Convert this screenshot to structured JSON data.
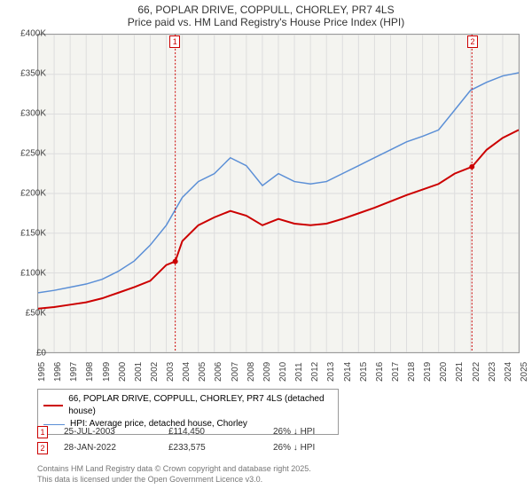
{
  "title_line1": "66, POPLAR DRIVE, COPPULL, CHORLEY, PR7 4LS",
  "title_line2": "Price paid vs. HM Land Registry's House Price Index (HPI)",
  "chart": {
    "type": "line",
    "background_color": "#f4f4f0",
    "border_color": "#999999",
    "grid_color": "#dddddd",
    "x_min": 1995,
    "x_max": 2025,
    "y_min": 0,
    "y_max": 400000,
    "y_ticks": [
      0,
      50000,
      100000,
      150000,
      200000,
      250000,
      300000,
      350000,
      400000
    ],
    "y_tick_labels": [
      "£0",
      "£50K",
      "£100K",
      "£150K",
      "£200K",
      "£250K",
      "£300K",
      "£350K",
      "£400K"
    ],
    "y_fontsize": 10,
    "x_ticks": [
      1995,
      1996,
      1997,
      1998,
      1999,
      2000,
      2001,
      2002,
      2003,
      2004,
      2005,
      2006,
      2007,
      2008,
      2009,
      2010,
      2011,
      2012,
      2013,
      2014,
      2015,
      2016,
      2017,
      2018,
      2019,
      2020,
      2021,
      2022,
      2023,
      2024,
      2025
    ],
    "x_fontsize": 10,
    "series": [
      {
        "name": "property",
        "color": "#cc0000",
        "width": 2,
        "points": [
          [
            1995,
            55000
          ],
          [
            1996,
            57000
          ],
          [
            1997,
            60000
          ],
          [
            1998,
            63000
          ],
          [
            1999,
            68000
          ],
          [
            2000,
            75000
          ],
          [
            2001,
            82000
          ],
          [
            2002,
            90000
          ],
          [
            2003,
            110000
          ],
          [
            2003.56,
            114450
          ],
          [
            2004,
            140000
          ],
          [
            2005,
            160000
          ],
          [
            2006,
            170000
          ],
          [
            2007,
            178000
          ],
          [
            2008,
            172000
          ],
          [
            2009,
            160000
          ],
          [
            2010,
            168000
          ],
          [
            2011,
            162000
          ],
          [
            2012,
            160000
          ],
          [
            2013,
            162000
          ],
          [
            2014,
            168000
          ],
          [
            2015,
            175000
          ],
          [
            2016,
            182000
          ],
          [
            2017,
            190000
          ],
          [
            2018,
            198000
          ],
          [
            2019,
            205000
          ],
          [
            2020,
            212000
          ],
          [
            2021,
            225000
          ],
          [
            2022.08,
            233575
          ],
          [
            2023,
            255000
          ],
          [
            2024,
            270000
          ],
          [
            2025,
            280000
          ]
        ]
      },
      {
        "name": "hpi",
        "color": "#5b8fd6",
        "width": 1.5,
        "points": [
          [
            1995,
            75000
          ],
          [
            1996,
            78000
          ],
          [
            1997,
            82000
          ],
          [
            1998,
            86000
          ],
          [
            1999,
            92000
          ],
          [
            2000,
            102000
          ],
          [
            2001,
            115000
          ],
          [
            2002,
            135000
          ],
          [
            2003,
            160000
          ],
          [
            2004,
            195000
          ],
          [
            2005,
            215000
          ],
          [
            2006,
            225000
          ],
          [
            2007,
            245000
          ],
          [
            2008,
            235000
          ],
          [
            2009,
            210000
          ],
          [
            2010,
            225000
          ],
          [
            2011,
            215000
          ],
          [
            2012,
            212000
          ],
          [
            2013,
            215000
          ],
          [
            2014,
            225000
          ],
          [
            2015,
            235000
          ],
          [
            2016,
            245000
          ],
          [
            2017,
            255000
          ],
          [
            2018,
            265000
          ],
          [
            2019,
            272000
          ],
          [
            2020,
            280000
          ],
          [
            2021,
            305000
          ],
          [
            2022,
            330000
          ],
          [
            2023,
            340000
          ],
          [
            2024,
            348000
          ],
          [
            2025,
            352000
          ]
        ]
      }
    ],
    "markers": [
      {
        "id": "1",
        "x": 2003.56,
        "y": 114450
      },
      {
        "id": "2",
        "x": 2022.08,
        "y": 233575
      }
    ]
  },
  "legend": {
    "items": [
      {
        "color": "#cc0000",
        "width": 2,
        "label": "66, POPLAR DRIVE, COPPULL, CHORLEY, PR7 4LS (detached house)"
      },
      {
        "color": "#5b8fd6",
        "width": 1.5,
        "label": "HPI: Average price, detached house, Chorley"
      }
    ]
  },
  "transactions": [
    {
      "id": "1",
      "date": "25-JUL-2003",
      "price": "£114,450",
      "delta": "26% ↓ HPI"
    },
    {
      "id": "2",
      "date": "28-JAN-2022",
      "price": "£233,575",
      "delta": "26% ↓ HPI"
    }
  ],
  "footer_line1": "Contains HM Land Registry data © Crown copyright and database right 2025.",
  "footer_line2": "This data is licensed under the Open Government Licence v3.0."
}
